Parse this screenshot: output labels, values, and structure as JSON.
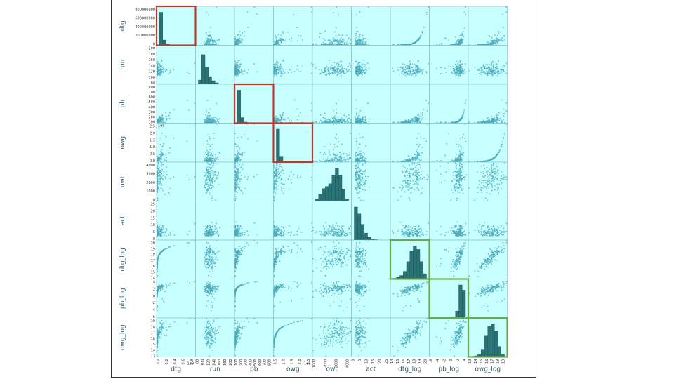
{
  "chart_data": {
    "type": "scatter-matrix",
    "title": "",
    "variables": [
      "dtg",
      "run",
      "pb",
      "owg",
      "owt",
      "act",
      "dtg_log",
      "pb_log",
      "owg_log"
    ],
    "scale_labels": {
      "dtg": "1e9",
      "owg": "1e8",
      "owg_row": "1e8"
    },
    "colors": {
      "panel_bg": "#c8ffff",
      "marker": "#4aa9b9",
      "hist": "#2a7477",
      "highlight_red": "#c0392b",
      "highlight_green": "#6aaa4a",
      "label": "#2e5563"
    },
    "highlighted_red_diagonals": [
      "dtg",
      "pb",
      "owg"
    ],
    "highlighted_green_diagonals": [
      "dtg_log",
      "pb_log",
      "owg_log"
    ],
    "axes": {
      "dtg": {
        "range": [
          0,
          950000000
        ],
        "yticks": [
          "0",
          "200000000",
          "400000000",
          "600000000",
          "800000000"
        ],
        "xticks": [
          "0.0",
          "0.2",
          "0.4",
          "0.6",
          "0.8"
        ]
      },
      "run": {
        "range": [
          60,
          210
        ],
        "yticks": [
          "80",
          "100",
          "120",
          "140",
          "160",
          "180",
          "200"
        ],
        "xticks": [
          "80",
          "100",
          "120",
          "140",
          "160",
          "180",
          "200"
        ]
      },
      "pb": {
        "range": [
          0,
          850
        ],
        "yticks": [
          "100",
          "200",
          "300",
          "400",
          "500",
          "600",
          "700",
          "800"
        ],
        "xticks": [
          "100",
          "200",
          "300",
          "400",
          "500",
          "600",
          "700",
          "800"
        ]
      },
      "owg": {
        "range": [
          0,
          250000000
        ],
        "yticks": [
          "0.0",
          "0.5",
          "1.0",
          "1.5",
          "2.0",
          "2.5"
        ],
        "xticks": [
          "0.5",
          "1.0",
          "1.5",
          "2.0",
          "2.5"
        ]
      },
      "owt": {
        "range": [
          0,
          4500
        ],
        "yticks": [
          "0",
          "1000",
          "2000",
          "3000",
          "4000"
        ],
        "xticks": [
          "1000",
          "2000",
          "3000",
          "4000"
        ]
      },
      "act": {
        "range": [
          0,
          28
        ],
        "yticks": [
          "0",
          "5",
          "10",
          "15",
          "20",
          "25"
        ],
        "xticks": [
          "0",
          "5",
          "10",
          "15",
          "20",
          "25"
        ]
      },
      "dtg_log": {
        "range": [
          13,
          21
        ],
        "yticks": [
          "14",
          "15",
          "16",
          "17",
          "18",
          "19",
          "20"
        ],
        "xticks": [
          "14",
          "15",
          "16",
          "17",
          "18",
          "19",
          "20"
        ]
      },
      "pb_log": {
        "range": [
          -6,
          7
        ],
        "yticks": [
          "-6",
          "-4",
          "-2",
          "0",
          "2",
          "4"
        ],
        "xticks": [
          "-6",
          "-4",
          "-2",
          "0",
          "2",
          "4"
        ]
      },
      "owg_log": {
        "range": [
          12.5,
          19.5
        ],
        "yticks": [
          "13",
          "14",
          "15",
          "16",
          "17",
          "18",
          "19"
        ],
        "xticks": [
          "13",
          "14",
          "15",
          "16",
          "17",
          "18",
          "19"
        ]
      }
    },
    "histograms": {
      "dtg": [
        0.95,
        0.15,
        0.03,
        0.01,
        0.0,
        0.0,
        0.0,
        0.0,
        0.0,
        0.0
      ],
      "run": [
        0.12,
        0.85,
        0.48,
        0.22,
        0.1,
        0.04,
        0.015,
        0.0,
        0.0,
        0.0
      ],
      "pb": [
        0.95,
        0.16,
        0.03,
        0.01,
        0.0,
        0.0,
        0.0,
        0.0,
        0.0,
        0.0
      ],
      "owg": [
        0.95,
        0.17,
        0.02,
        0.01,
        0.0,
        0.0,
        0.0,
        0.0,
        0.0,
        0.0
      ],
      "owt": [
        0.06,
        0.2,
        0.36,
        0.42,
        0.5,
        0.75,
        0.95,
        0.75,
        0.35,
        0.06
      ],
      "act": [
        0.95,
        0.75,
        0.45,
        0.2,
        0.08,
        0.02,
        0.01,
        0.0,
        0.0,
        0.0
      ],
      "dtg_log": [
        0.02,
        0.05,
        0.1,
        0.22,
        0.5,
        0.8,
        0.95,
        0.85,
        0.5,
        0.15
      ],
      "pb_log": [
        0.0,
        0.0,
        0.0,
        0.0,
        0.0,
        0.01,
        0.03,
        0.2,
        0.95,
        0.8
      ],
      "owg_log": [
        0.01,
        0.03,
        0.08,
        0.22,
        0.6,
        0.88,
        0.95,
        0.75,
        0.3,
        0.08
      ]
    }
  }
}
